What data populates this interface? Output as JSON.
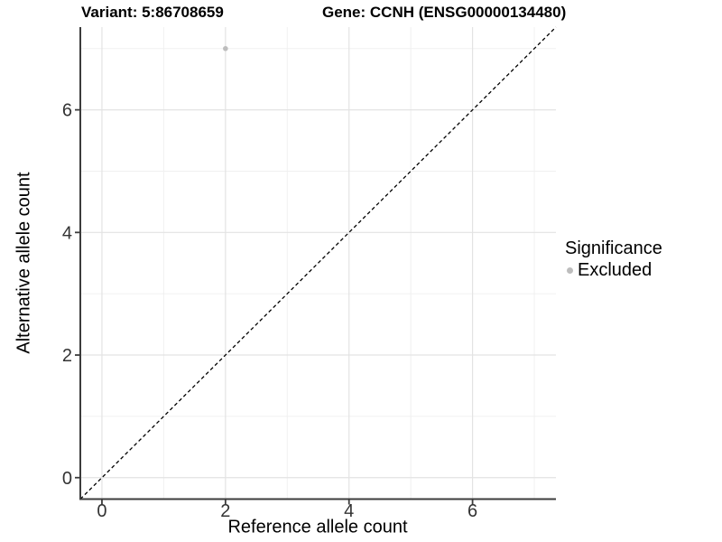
{
  "figure": {
    "title_left": "Variant: 5:86708659",
    "title_right": "Gene: CCNH (ENSG00000134480)"
  },
  "chart_data": {
    "type": "scatter",
    "title_left": "Variant: 5:86708659",
    "title_right": "Gene: CCNH (ENSG00000134480)",
    "xlabel": "Reference allele count",
    "ylabel": "Alternative allele count",
    "xlim": [
      -0.35,
      7.35
    ],
    "ylim": [
      -0.35,
      7.35
    ],
    "xticks": [
      0,
      2,
      4,
      6
    ],
    "yticks": [
      0,
      2,
      4,
      6
    ],
    "minor_gridlines_x": [
      1,
      3,
      5,
      7
    ],
    "minor_gridlines_y": [
      1,
      3,
      5,
      7
    ],
    "grid": true,
    "points": [
      {
        "x": 2,
        "y": 7,
        "series": "Excluded"
      }
    ],
    "reference_line": {
      "equation": "y = x",
      "style": "dashed",
      "color": "#000000"
    },
    "legend": {
      "title": "Significance",
      "position": "right",
      "entries": [
        {
          "label": "Excluded",
          "color": "#bdbdbd"
        }
      ]
    },
    "colors": {
      "point": "#bdbdbd",
      "grid_major": "#e3e3e3",
      "grid_minor": "#f0f0f0",
      "axis_line": "#3c3c3c",
      "tick_text": "#333333"
    }
  }
}
